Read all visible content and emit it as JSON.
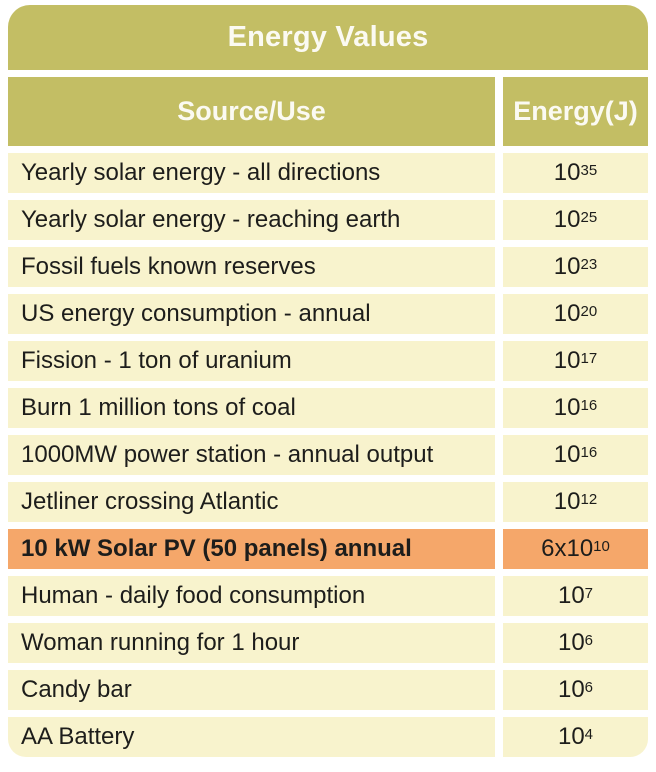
{
  "table": {
    "title": "Energy Values",
    "columns": [
      "Source/Use",
      "Energy(J)"
    ],
    "rows": [
      {
        "source": "Yearly solar energy - all directions",
        "value_base": "10",
        "value_exponent": "35",
        "highlight": false
      },
      {
        "source": "Yearly solar energy - reaching earth",
        "value_base": "10",
        "value_exponent": "25",
        "highlight": false
      },
      {
        "source": "Fossil fuels known reserves",
        "value_base": "10",
        "value_exponent": "23",
        "highlight": false
      },
      {
        "source": "US energy consumption - annual",
        "value_base": "10",
        "value_exponent": "20",
        "highlight": false
      },
      {
        "source": "Fission - 1 ton of uranium",
        "value_base": "10",
        "value_exponent": "17",
        "highlight": false
      },
      {
        "source": "Burn 1 million tons of coal",
        "value_base": "10",
        "value_exponent": "16",
        "highlight": false
      },
      {
        "source": "1000MW power station - annual output",
        "value_base": "10",
        "value_exponent": "16",
        "highlight": false
      },
      {
        "source": "Jetliner crossing Atlantic",
        "value_base": "10",
        "value_exponent": "12",
        "highlight": false
      },
      {
        "source": "10 kW Solar PV (50 panels) annual",
        "value_base": "6x10",
        "value_exponent": "10",
        "highlight": true
      },
      {
        "source": "Human - daily food consumption",
        "value_base": "10",
        "value_exponent": "7",
        "highlight": false
      },
      {
        "source": "Woman running for 1 hour",
        "value_base": "10",
        "value_exponent": "6",
        "highlight": false
      },
      {
        "source": "Candy bar",
        "value_base": "10",
        "value_exponent": "6",
        "highlight": false
      },
      {
        "source": "AA Battery",
        "value_base": "10",
        "value_exponent": "4",
        "highlight": false
      }
    ]
  },
  "colors": {
    "header_olive": "#c3be64",
    "row_cream": "#f8f3cd",
    "highlight_orange": "#f5a76a",
    "header_text": "#fbfaf2",
    "body_text": "#1d1d1b",
    "background": "#ffffff"
  },
  "chart_data": {
    "type": "table",
    "title": "Energy Values",
    "columns": [
      "Source/Use",
      "Energy(J)"
    ],
    "rows": [
      [
        "Yearly solar energy - all directions",
        "10^35"
      ],
      [
        "Yearly solar energy - reaching earth",
        "10^25"
      ],
      [
        "Fossil fuels known reserves",
        "10^23"
      ],
      [
        "US energy consumption - annual",
        "10^20"
      ],
      [
        "Fission - 1 ton of uranium",
        "10^17"
      ],
      [
        "Burn 1 million tons of coal",
        "10^16"
      ],
      [
        "1000MW power station - annual output",
        "10^16"
      ],
      [
        "Jetliner crossing Atlantic",
        "10^12"
      ],
      [
        "10 kW Solar PV (50 panels) annual",
        "6x10^10"
      ],
      [
        "Human - daily food consumption",
        "10^7"
      ],
      [
        "Woman running for 1 hour",
        "10^6"
      ],
      [
        "Candy bar",
        "10^6"
      ],
      [
        "AA Battery",
        "10^4"
      ]
    ],
    "highlighted_row": "10 kW Solar PV (50 panels) annual",
    "legend_position": "none",
    "grid": false
  }
}
